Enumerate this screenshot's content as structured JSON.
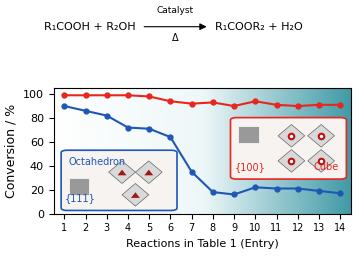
{
  "chart_data": {
    "type": "line",
    "equation": {
      "left": "R₁COOH + R₂OH",
      "right": "R₁COOR₂ + H₂O",
      "above_arrow": "Catalyst",
      "below_arrow": "Δ"
    },
    "x_label": "Reactions in Table 1 (Entry)",
    "y_label": "Conversion / %",
    "x": [
      1,
      2,
      3,
      4,
      5,
      6,
      7,
      8,
      9,
      10,
      11,
      12,
      13,
      14
    ],
    "xlim": [
      0.5,
      14.5
    ],
    "xticks": [
      1,
      2,
      3,
      4,
      5,
      6,
      7,
      8,
      9,
      10,
      11,
      12,
      13,
      14
    ],
    "ylim": [
      0,
      105
    ],
    "yticks": [
      0,
      20,
      40,
      60,
      80,
      100
    ],
    "series": [
      {
        "name": "Cube",
        "facet": "{100}",
        "color": "#e8251e",
        "marker": "o",
        "line_style": "solid",
        "values": [
          99,
          99,
          99,
          99,
          98,
          94,
          92,
          93,
          90,
          94,
          91,
          90,
          91,
          91
        ]
      },
      {
        "name": "Octahedron",
        "facet": "{111}",
        "color": "#1f57b5",
        "marker": "o",
        "line_style": "solid",
        "values": [
          90,
          86,
          82,
          72,
          71,
          64,
          35,
          18,
          16,
          22,
          21,
          21,
          19,
          17
        ]
      }
    ],
    "grid": false
  }
}
